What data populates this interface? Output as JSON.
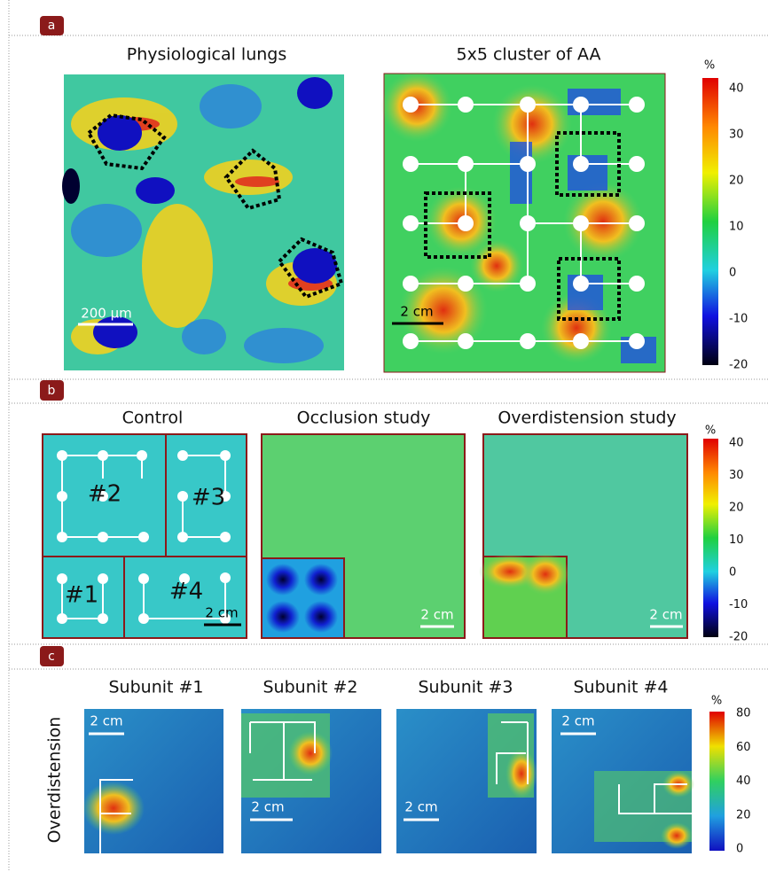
{
  "panels": [
    {
      "label": "a",
      "titles": [
        "Physiological lungs",
        "5x5 cluster of AA"
      ],
      "scale_bars": [
        "200 µm",
        "2 cm"
      ],
      "colorbar": {
        "unit": "%",
        "ticks": [
          "40",
          "30",
          "20",
          "10",
          "0",
          "-10",
          "-20"
        ]
      }
    },
    {
      "label": "b",
      "titles": [
        "Control",
        "Occlusion study",
        "Overdistension study"
      ],
      "subunits": [
        "#2",
        "#3",
        "#1",
        "#4"
      ],
      "scale_bars": [
        "2 cm",
        "2 cm",
        "2 cm"
      ],
      "colorbar": {
        "unit": "%",
        "ticks": [
          "40",
          "30",
          "20",
          "10",
          "0",
          "-10",
          "-20"
        ]
      }
    },
    {
      "label": "c",
      "titles": [
        "Subunit #1",
        "Subunit #2",
        "Subunit #3",
        "Subunit #4"
      ],
      "row_label": "Overdistension",
      "scale_bars": [
        "2 cm",
        "2 cm",
        "2 cm",
        "2 cm"
      ],
      "colorbar": {
        "unit": "%",
        "ticks": [
          "80",
          "60",
          "40",
          "20",
          "0"
        ]
      }
    }
  ]
}
